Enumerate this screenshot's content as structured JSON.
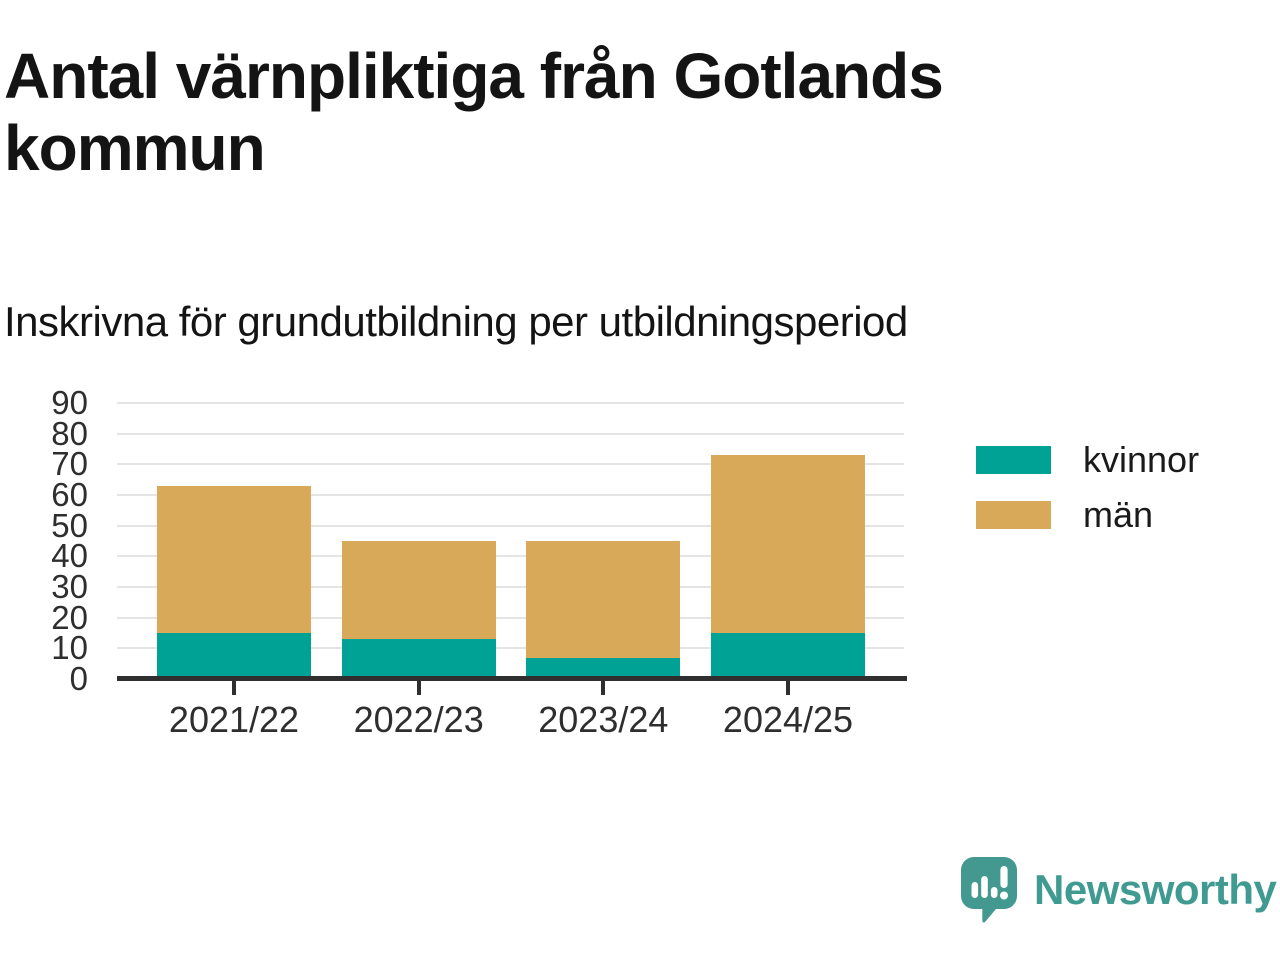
{
  "page": {
    "title": "Antal värnpliktiga från Gotlands kommun",
    "subtitle": "Inskrivna för grundutbildning per utbildningsperiod"
  },
  "chart_data": {
    "type": "bar",
    "stacked": true,
    "title": "Antal värnpliktiga från Gotlands kommun",
    "subtitle": "Inskrivna för grundutbildning per utbildningsperiod",
    "categories": [
      "2021/22",
      "2022/23",
      "2023/24",
      "2024/25"
    ],
    "series": [
      {
        "name": "kvinnor",
        "color": "#00a296",
        "values": [
          15,
          13,
          7,
          15
        ]
      },
      {
        "name": "män",
        "color": "#d9a95a",
        "values": [
          48,
          32,
          38,
          58
        ]
      }
    ],
    "totals": [
      63,
      45,
      45,
      73
    ],
    "xlabel": "",
    "ylabel": "",
    "ylim": [
      0,
      90
    ],
    "yticks": [
      0,
      10,
      20,
      30,
      40,
      50,
      60,
      70,
      80,
      90
    ],
    "grid": "horizontal",
    "legend_position": "right",
    "colors": {
      "gridline": "#e4e4e4",
      "axis": "#2f2f2f",
      "tick_labels": "#2e2e2e"
    }
  },
  "branding": {
    "logo_text": "Newsworthy",
    "logo_color": "#3f9b91",
    "logo_icon": "speech-bubble-bar-chart-icon"
  }
}
